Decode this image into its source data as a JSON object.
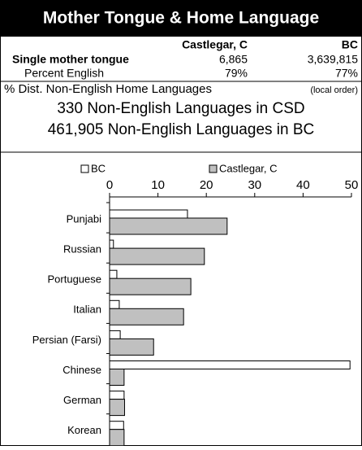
{
  "header": {
    "title": "Mother Tongue & Home Language"
  },
  "table": {
    "columns": [
      "Castlegar, C",
      "BC"
    ],
    "rows": [
      [
        "Single mother tongue",
        "6,865",
        "3,639,815"
      ],
      [
        "Percent English",
        "79%",
        "77%"
      ]
    ]
  },
  "summary": {
    "heading": "% Dist. Non-English Home Languages",
    "heading_note": "(local order)",
    "lines": [
      "330 Non-English Languages in CSD",
      "461,905 Non-English Languages in BC"
    ]
  },
  "chart_data": {
    "type": "hbar",
    "categories": [
      "Punjabi",
      "Russian",
      "Portuguese",
      "Italian",
      "Persian (Farsi)",
      "Chinese",
      "German",
      "Korean"
    ],
    "series": [
      {
        "name": "BC",
        "color": "#ffffff",
        "values": [
          16.1,
          0.8,
          1.5,
          2.0,
          2.2,
          49.7,
          3.0,
          2.9
        ]
      },
      {
        "name": "Castlegar, C",
        "color": "#c0c0c0",
        "values": [
          24.3,
          19.6,
          16.8,
          15.3,
          9.1,
          3.0,
          3.1,
          3.0
        ]
      }
    ],
    "xlim": [
      0,
      50
    ],
    "xticks": [
      0,
      10,
      20,
      30,
      40,
      50
    ],
    "grid": false
  }
}
